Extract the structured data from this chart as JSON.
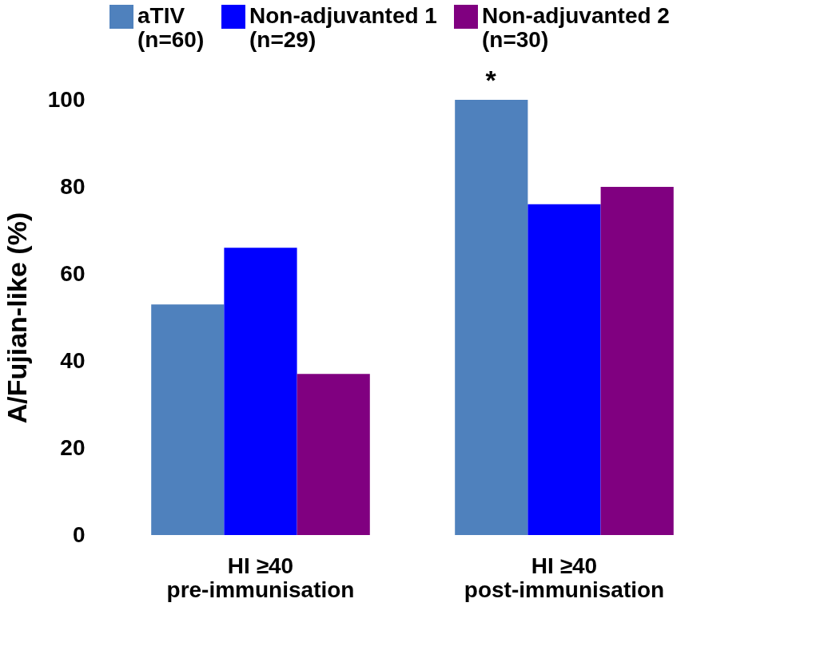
{
  "chart_data": {
    "type": "bar",
    "ylabel": "A/Fujian-like (%)",
    "categories": [
      "HI ≥40\npre-immunisation",
      "HI ≥40\npost-immunisation"
    ],
    "series": [
      {
        "name": "aTIV\n(n=60)",
        "color": "#4f81bd",
        "values": [
          53,
          100
        ]
      },
      {
        "name": "Non-adjuvanted 1\n(n=29)",
        "color": "#0000ff",
        "values": [
          66,
          76
        ]
      },
      {
        "name": "Non-adjuvanted 2\n(n=30)",
        "color": "#800080",
        "values": [
          37,
          80
        ]
      }
    ],
    "ylim": [
      0,
      100
    ],
    "yticks": [
      0,
      20,
      40,
      60,
      80,
      100
    ],
    "grid": false,
    "legend": "top",
    "annotations": [
      "*"
    ]
  }
}
